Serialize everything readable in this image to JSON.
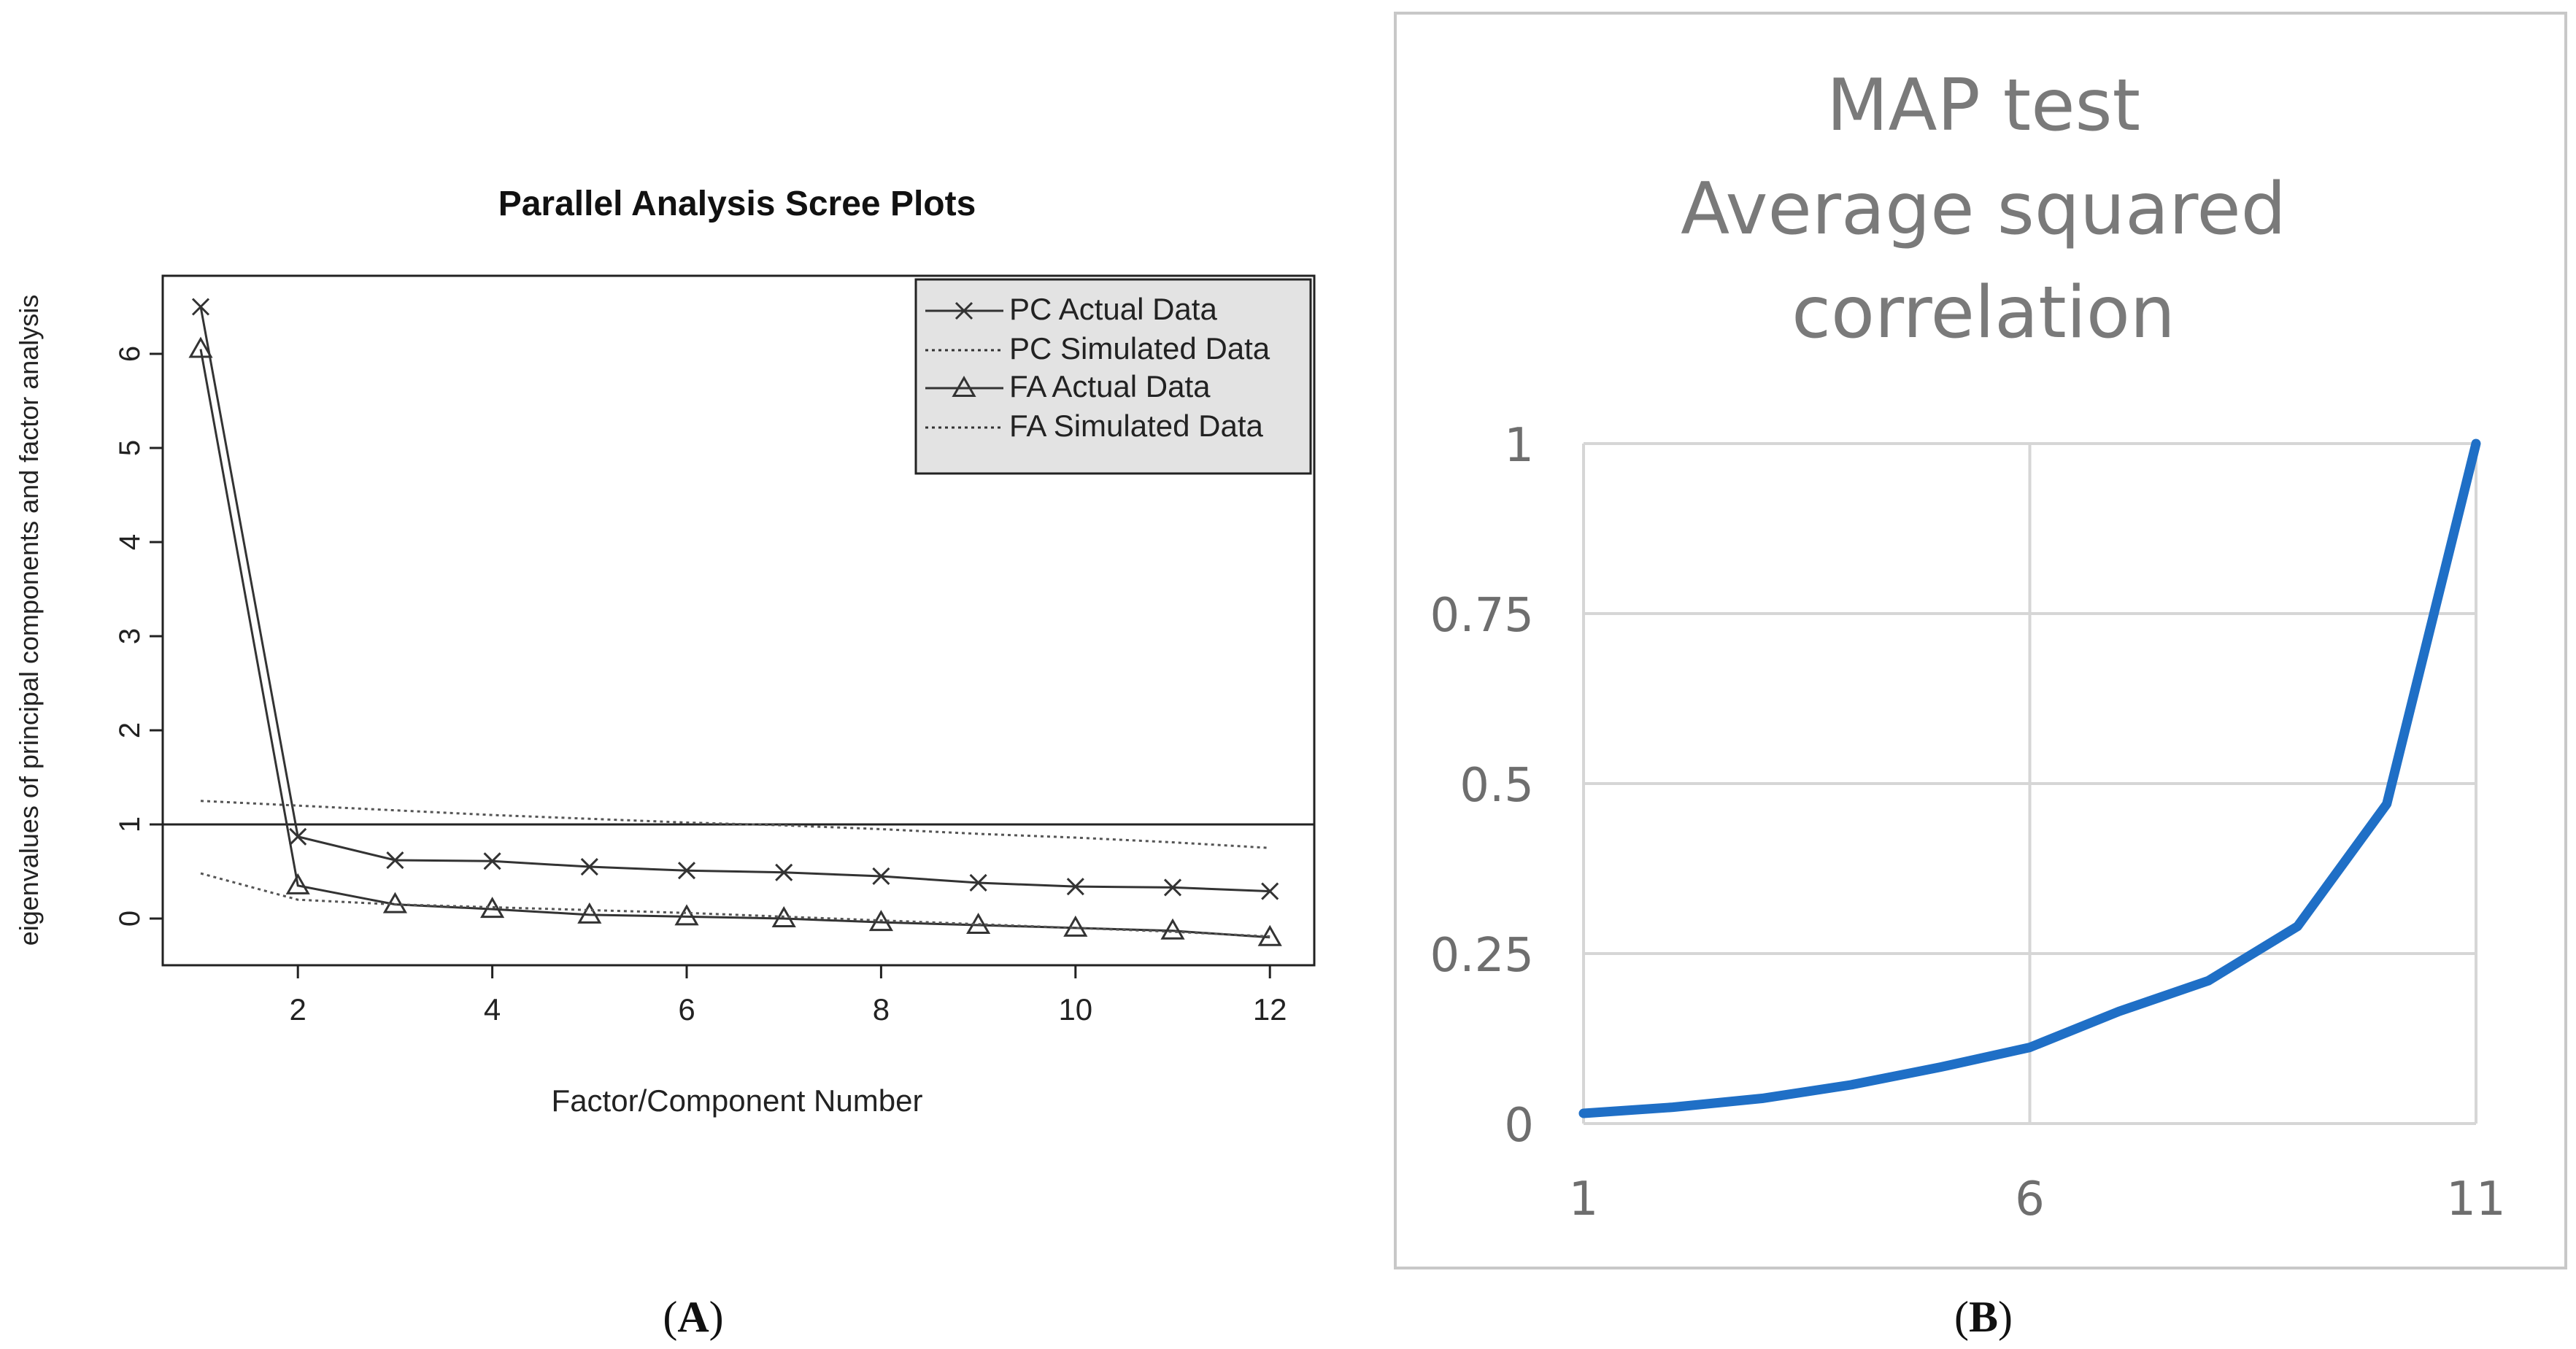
{
  "panel_labels": {
    "a": "A",
    "b": "B"
  },
  "chart_data": [
    {
      "id": "A",
      "type": "line",
      "title": "Parallel Analysis Scree Plots",
      "xlabel": "Factor/Component Number",
      "ylabel": "eigenvalues of principal components and factor analysis",
      "xlim": [
        1,
        12
      ],
      "ylim": [
        -0.5,
        6.7
      ],
      "xticks": [
        2,
        4,
        6,
        8,
        10,
        12
      ],
      "yticks": [
        0,
        1,
        2,
        3,
        4,
        5,
        6
      ],
      "hline": 1,
      "grid": false,
      "legend_position": "top-right",
      "x": [
        1,
        2,
        3,
        4,
        5,
        6,
        7,
        8,
        9,
        10,
        11,
        12
      ],
      "series": [
        {
          "name": "PC  Actual Data",
          "style": "solid",
          "marker": "x",
          "values": [
            6.5,
            0.87,
            0.62,
            0.61,
            0.55,
            0.51,
            0.49,
            0.45,
            0.38,
            0.34,
            0.33,
            0.29
          ]
        },
        {
          "name": "PC  Simulated Data",
          "style": "dotted",
          "marker": "none",
          "values": [
            1.25,
            1.2,
            1.15,
            1.1,
            1.06,
            1.02,
            0.99,
            0.95,
            0.9,
            0.86,
            0.81,
            0.75
          ]
        },
        {
          "name": "FA  Actual Data",
          "style": "solid",
          "marker": "triangle",
          "values": [
            6.05,
            0.35,
            0.15,
            0.1,
            0.04,
            0.02,
            0.0,
            -0.04,
            -0.07,
            -0.1,
            -0.13,
            -0.2
          ]
        },
        {
          "name": "FA  Simulated Data",
          "style": "dotted",
          "marker": "none",
          "values": [
            0.48,
            0.2,
            0.15,
            0.12,
            0.09,
            0.06,
            0.02,
            -0.02,
            -0.06,
            -0.1,
            -0.14,
            -0.19
          ]
        }
      ]
    },
    {
      "id": "B",
      "type": "line",
      "title": "MAP test",
      "subtitle_lines": [
        "Average squared",
        "correlation"
      ],
      "xlabel": "",
      "ylabel": "",
      "xlim": [
        1,
        11
      ],
      "ylim": [
        0,
        1
      ],
      "xticks": [
        1,
        6,
        11
      ],
      "ytick_labels": [
        "0",
        "0.25",
        "0.5",
        "0.75",
        "1"
      ],
      "grid": true,
      "color": "#1f6fc6",
      "x": [
        1,
        2,
        3,
        4,
        5,
        6,
        7,
        8,
        9,
        10,
        11
      ],
      "values": [
        0.015,
        0.024,
        0.037,
        0.057,
        0.083,
        0.112,
        0.165,
        0.21,
        0.29,
        0.47,
        1.0
      ]
    }
  ]
}
